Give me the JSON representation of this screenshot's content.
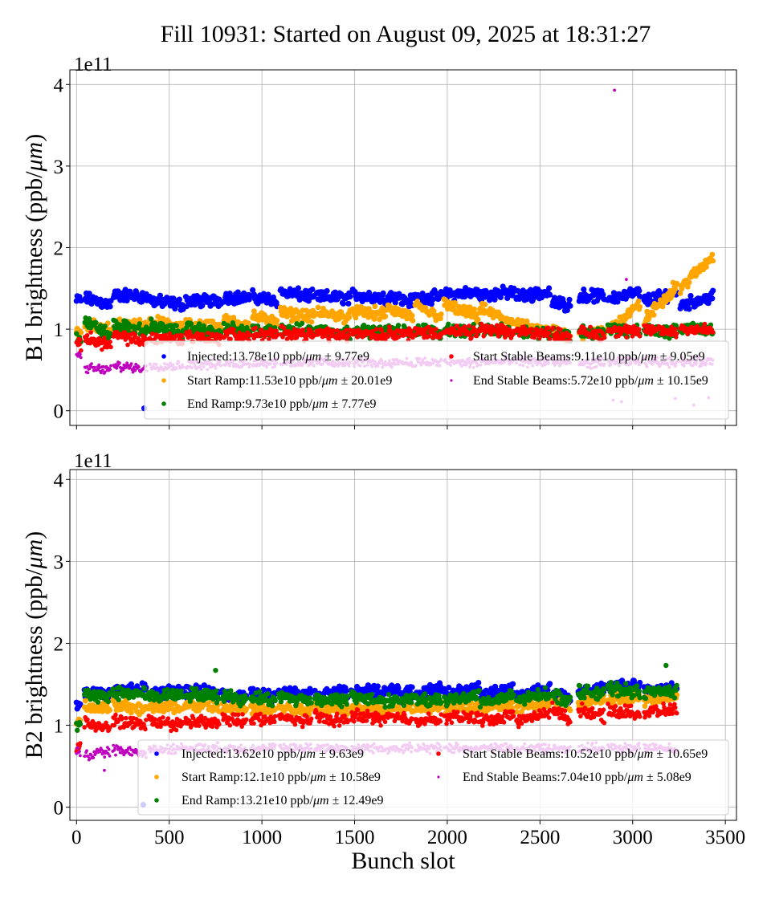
{
  "title": "Fill 10931: Started on August 09, 2025 at 18:31:27",
  "chart_data": [
    {
      "type": "scatter",
      "ylabel": "B1 brightness (ppb/μm)",
      "xlabel": "",
      "offset_label": "1e11",
      "xlim": [
        -36,
        3560
      ],
      "ylim": [
        -0.18,
        4.18
      ],
      "xticks": [
        0,
        500,
        1000,
        1500,
        2000,
        2500,
        3000,
        3500
      ],
      "xtick_labels_shown": false,
      "yticks": [
        0,
        1,
        2,
        3,
        4
      ],
      "grid": true,
      "legend_placement": "lower-right",
      "trains": [
        [
          0,
          25
        ],
        [
          45,
          185
        ],
        [
          200,
          380
        ],
        [
          395,
          575
        ],
        [
          590,
          780
        ],
        [
          795,
          935
        ],
        [
          950,
          1085
        ],
        [
          1100,
          1280
        ],
        [
          1295,
          1475
        ],
        [
          1490,
          1670
        ],
        [
          1680,
          1745
        ],
        [
          1754,
          1815
        ],
        [
          1827,
          1970
        ],
        [
          1982,
          2168
        ],
        [
          2176,
          2360
        ],
        [
          2373,
          2554
        ],
        [
          2567,
          2663
        ],
        [
          2712,
          2850
        ],
        [
          2867,
          3042
        ],
        [
          3062,
          3240
        ],
        [
          3257,
          3434
        ]
      ],
      "series": [
        {
          "name": "Injected:13.78e10 ppb/μm ± 9.77e9",
          "color": "#0000ff",
          "train_values": [
            [
              1.35,
              1.35
            ],
            [
              1.38,
              1.3
            ],
            [
              1.42,
              1.4
            ],
            [
              1.35,
              1.3
            ],
            [
              1.35,
              1.35
            ],
            [
              1.4,
              1.38
            ],
            [
              1.4,
              1.35
            ],
            [
              1.45,
              1.4
            ],
            [
              1.4,
              1.38
            ],
            [
              1.42,
              1.38
            ],
            [
              1.42,
              1.4
            ],
            [
              1.35,
              1.35
            ],
            [
              1.38,
              1.4
            ],
            [
              1.42,
              1.45
            ],
            [
              1.42,
              1.45
            ],
            [
              1.4,
              1.45
            ],
            [
              1.32,
              1.3
            ],
            [
              1.42,
              1.4
            ],
            [
              1.38,
              1.45
            ],
            [
              1.35,
              1.45
            ],
            [
              1.3,
              1.4
            ]
          ],
          "outliers": [
            [
              365,
              0.03
            ]
          ]
        },
        {
          "name": "Start Ramp:11.53e10 ppb/μm ± 20.01e9",
          "color": "#ffa500",
          "train_values": [
            [
              0.95,
              0.95
            ],
            [
              1.05,
              1.0
            ],
            [
              1.05,
              1.05
            ],
            [
              1.1,
              1.0
            ],
            [
              1.05,
              1.05
            ],
            [
              1.1,
              1.05
            ],
            [
              1.15,
              1.1
            ],
            [
              1.2,
              1.15
            ],
            [
              1.2,
              1.15
            ],
            [
              1.22,
              1.18
            ],
            [
              1.25,
              1.2
            ],
            [
              1.2,
              1.15
            ],
            [
              1.28,
              1.15
            ],
            [
              1.3,
              1.15
            ],
            [
              1.25,
              1.08
            ],
            [
              1.05,
              0.95
            ],
            [
              0.98,
              0.92
            ],
            [
              0.95,
              0.95
            ],
            [
              1.0,
              1.3
            ],
            [
              1.1,
              1.55
            ],
            [
              1.5,
              1.9
            ]
          ],
          "outliers": []
        },
        {
          "name": "End Ramp:9.73e10 ppb/μm ± 7.77e9",
          "color": "#008000",
          "train_values": [
            [
              0.9,
              0.9
            ],
            [
              1.1,
              0.92
            ],
            [
              1.05,
              0.98
            ],
            [
              1.05,
              0.95
            ],
            [
              1.02,
              0.95
            ],
            [
              1.02,
              0.95
            ],
            [
              1.0,
              0.95
            ],
            [
              1.02,
              0.97
            ],
            [
              1.0,
              0.95
            ],
            [
              1.0,
              0.95
            ],
            [
              1.0,
              0.98
            ],
            [
              0.98,
              0.95
            ],
            [
              1.0,
              0.95
            ],
            [
              1.0,
              0.97
            ],
            [
              1.0,
              0.97
            ],
            [
              0.98,
              0.95
            ],
            [
              0.97,
              0.92
            ],
            [
              0.97,
              0.95
            ],
            [
              1.0,
              0.97
            ],
            [
              1.0,
              0.97
            ],
            [
              1.02,
              1.0
            ]
          ],
          "outliers": []
        },
        {
          "name": "Start Stable Beams:9.11e10 ppb/μm ± 9.05e9",
          "color": "#ff0000",
          "train_values": [
            [
              0.8,
              0.8
            ],
            [
              0.9,
              0.8
            ],
            [
              0.92,
              0.85
            ],
            [
              0.9,
              0.88
            ],
            [
              0.92,
              0.88
            ],
            [
              0.95,
              0.9
            ],
            [
              0.95,
              0.92
            ],
            [
              0.97,
              0.93
            ],
            [
              0.95,
              0.92
            ],
            [
              0.97,
              0.93
            ],
            [
              0.97,
              0.95
            ],
            [
              0.95,
              0.93
            ],
            [
              0.97,
              0.95
            ],
            [
              0.98,
              0.95
            ],
            [
              1.0,
              0.95
            ],
            [
              0.98,
              0.95
            ],
            [
              0.95,
              0.92
            ],
            [
              0.97,
              0.93
            ],
            [
              1.0,
              0.95
            ],
            [
              1.0,
              0.97
            ],
            [
              1.02,
              0.98
            ]
          ],
          "outliers": []
        },
        {
          "name": "End Stable Beams:5.72e10 ppb/μm ± 10.15e9",
          "color": "#bf00bf",
          "train_values": [
            [
              0.7,
              0.65
            ],
            [
              0.52,
              0.5
            ],
            [
              0.55,
              0.52
            ],
            [
              0.55,
              0.55
            ],
            [
              0.57,
              0.56
            ],
            [
              0.58,
              0.57
            ],
            [
              0.6,
              0.58
            ],
            [
              0.6,
              0.58
            ],
            [
              0.6,
              0.58
            ],
            [
              0.6,
              0.58
            ],
            [
              0.6,
              0.6
            ],
            [
              0.6,
              0.58
            ],
            [
              0.6,
              0.58
            ],
            [
              0.6,
              0.58
            ],
            [
              0.6,
              0.6
            ],
            [
              0.6,
              0.6
            ],
            [
              0.6,
              0.58
            ],
            [
              0.58,
              0.58
            ],
            [
              0.6,
              0.6
            ],
            [
              0.6,
              0.6
            ],
            [
              0.6,
              0.6
            ]
          ],
          "outliers": [
            [
              2902,
              3.93
            ],
            [
              2966,
              1.61
            ],
            [
              2895,
              0.13
            ],
            [
              2940,
              0.11
            ],
            [
              3230,
              0.15
            ],
            [
              3330,
              0.07
            ],
            [
              3410,
              0.16
            ]
          ]
        }
      ]
    },
    {
      "type": "scatter",
      "ylabel": "B2 brightness (ppb/μm)",
      "xlabel": "Bunch slot",
      "offset_label": "1e11",
      "xlim": [
        -36,
        3560
      ],
      "ylim": [
        -0.16,
        4.12
      ],
      "xticks": [
        0,
        500,
        1000,
        1500,
        2000,
        2500,
        3000,
        3500
      ],
      "xtick_labels": [
        "0",
        "500",
        "1000",
        "1500",
        "2000",
        "2500",
        "3000",
        "3500"
      ],
      "xtick_labels_shown": true,
      "yticks": [
        0,
        1,
        2,
        3,
        4
      ],
      "grid": true,
      "legend_placement": "lower-right",
      "trains": [
        [
          0,
          22
        ],
        [
          43,
          182
        ],
        [
          195,
          377
        ],
        [
          390,
          576
        ],
        [
          585,
          771
        ],
        [
          788,
          918
        ],
        [
          940,
          1074
        ],
        [
          1091,
          1269
        ],
        [
          1286,
          1464
        ],
        [
          1481,
          1667
        ],
        [
          1676,
          1745
        ],
        [
          1754,
          1810
        ],
        [
          1827,
          1970
        ],
        [
          1984,
          2174
        ],
        [
          2178,
          2360
        ],
        [
          2373,
          2554
        ],
        [
          2567,
          2663
        ],
        [
          2707,
          2850
        ],
        [
          2867,
          3040
        ],
        [
          3062,
          3240
        ]
      ],
      "series": [
        {
          "name": "Injected:13.62e10 ppb/μm ± 9.63e9",
          "color": "#0000ff",
          "train_values": [
            [
              1.25,
              1.25
            ],
            [
              1.42,
              1.35
            ],
            [
              1.42,
              1.45
            ],
            [
              1.38,
              1.42
            ],
            [
              1.4,
              1.4
            ],
            [
              1.38,
              1.35
            ],
            [
              1.38,
              1.35
            ],
            [
              1.4,
              1.38
            ],
            [
              1.38,
              1.4
            ],
            [
              1.4,
              1.42
            ],
            [
              1.42,
              1.45
            ],
            [
              1.35,
              1.4
            ],
            [
              1.38,
              1.45
            ],
            [
              1.38,
              1.45
            ],
            [
              1.35,
              1.45
            ],
            [
              1.35,
              1.45
            ],
            [
              1.35,
              1.35
            ],
            [
              1.4,
              1.45
            ],
            [
              1.45,
              1.5
            ],
            [
              1.42,
              1.45
            ]
          ],
          "outliers": [
            [
              360,
              0.03
            ]
          ]
        },
        {
          "name": "Start Ramp:12.1e10 ppb/μm ± 10.58e9",
          "color": "#ffa500",
          "train_values": [
            [
              1.05,
              1.05
            ],
            [
              1.25,
              1.2
            ],
            [
              1.25,
              1.2
            ],
            [
              1.25,
              1.2
            ],
            [
              1.25,
              1.22
            ],
            [
              1.2,
              1.2
            ],
            [
              1.2,
              1.2
            ],
            [
              1.22,
              1.2
            ],
            [
              1.22,
              1.2
            ],
            [
              1.2,
              1.2
            ],
            [
              1.2,
              1.2
            ],
            [
              1.2,
              1.22
            ],
            [
              1.2,
              1.25
            ],
            [
              1.22,
              1.22
            ],
            [
              1.2,
              1.25
            ],
            [
              1.22,
              1.28
            ],
            [
              1.3,
              1.25
            ],
            [
              1.28,
              1.32
            ],
            [
              1.3,
              1.35
            ],
            [
              1.3,
              1.35
            ]
          ],
          "outliers": []
        },
        {
          "name": "End Ramp:13.21e10 ppb/μm ± 12.49e9",
          "color": "#008000",
          "train_values": [
            [
              1.0,
              1.0
            ],
            [
              1.38,
              1.35
            ],
            [
              1.38,
              1.4
            ],
            [
              1.35,
              1.38
            ],
            [
              1.38,
              1.35
            ],
            [
              1.38,
              1.3
            ],
            [
              1.35,
              1.3
            ],
            [
              1.35,
              1.3
            ],
            [
              1.32,
              1.3
            ],
            [
              1.35,
              1.3
            ],
            [
              1.3,
              1.3
            ],
            [
              1.32,
              1.3
            ],
            [
              1.3,
              1.3
            ],
            [
              1.3,
              1.38
            ],
            [
              1.28,
              1.35
            ],
            [
              1.3,
              1.4
            ],
            [
              1.38,
              1.3
            ],
            [
              1.42,
              1.38
            ],
            [
              1.45,
              1.4
            ],
            [
              1.4,
              1.42
            ]
          ],
          "outliers": [
            [
              750,
              1.67
            ],
            [
              3180,
              1.73
            ]
          ]
        },
        {
          "name": "Start Stable Beams:10.52e10 ppb/μm ± 10.65e9",
          "color": "#ff0000",
          "train_values": [
            [
              0.75,
              0.75
            ],
            [
              1.02,
              0.98
            ],
            [
              1.05,
              1.0
            ],
            [
              1.05,
              1.0
            ],
            [
              1.05,
              1.02
            ],
            [
              1.08,
              1.05
            ],
            [
              1.1,
              1.05
            ],
            [
              1.1,
              1.05
            ],
            [
              1.1,
              1.05
            ],
            [
              1.12,
              1.08
            ],
            [
              1.12,
              1.08
            ],
            [
              1.1,
              1.05
            ],
            [
              1.08,
              1.05
            ],
            [
              1.1,
              1.1
            ],
            [
              1.05,
              1.12
            ],
            [
              1.05,
              1.15
            ],
            [
              1.22,
              1.05
            ],
            [
              1.2,
              1.1
            ],
            [
              1.18,
              1.15
            ],
            [
              1.15,
              1.2
            ]
          ],
          "outliers": []
        },
        {
          "name": "End Stable Beams:7.04e10 ppb/μm ± 5.08e9",
          "color": "#bf00bf",
          "train_values": [
            [
              0.7,
              0.65
            ],
            [
              0.62,
              0.68
            ],
            [
              0.7,
              0.65
            ],
            [
              0.7,
              0.72
            ],
            [
              0.72,
              0.72
            ],
            [
              0.72,
              0.72
            ],
            [
              0.72,
              0.72
            ],
            [
              0.72,
              0.72
            ],
            [
              0.72,
              0.72
            ],
            [
              0.72,
              0.72
            ],
            [
              0.72,
              0.72
            ],
            [
              0.72,
              0.72
            ],
            [
              0.72,
              0.72
            ],
            [
              0.72,
              0.72
            ],
            [
              0.72,
              0.72
            ],
            [
              0.72,
              0.72
            ],
            [
              0.72,
              0.72
            ],
            [
              0.72,
              0.72
            ],
            [
              0.72,
              0.72
            ],
            [
              0.72,
              0.72
            ]
          ],
          "outliers": [
            [
              150,
              0.45
            ]
          ]
        }
      ]
    }
  ]
}
